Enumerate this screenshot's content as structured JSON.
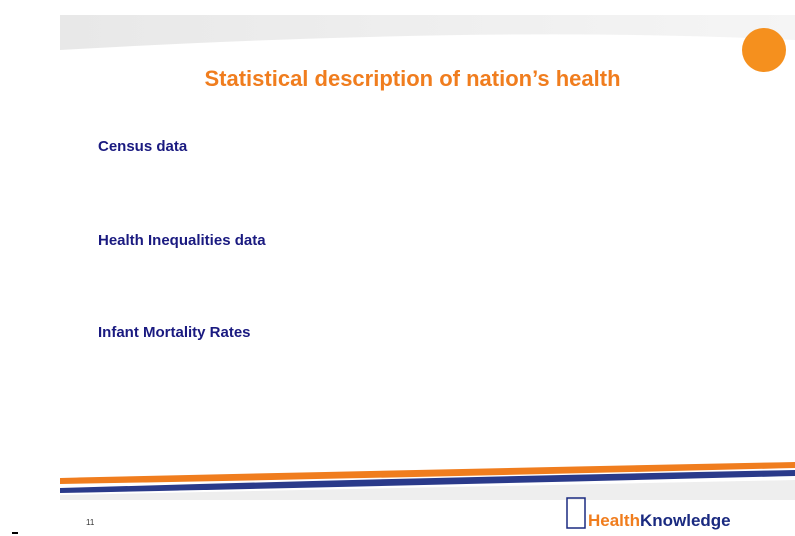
{
  "title": "Statistical description of nation’s health",
  "items": [
    "Census data",
    "Health Inequalities data",
    "Infant Mortality Rates"
  ],
  "slide_number": "11",
  "logo": [
    "Health",
    "Knowledge"
  ]
}
